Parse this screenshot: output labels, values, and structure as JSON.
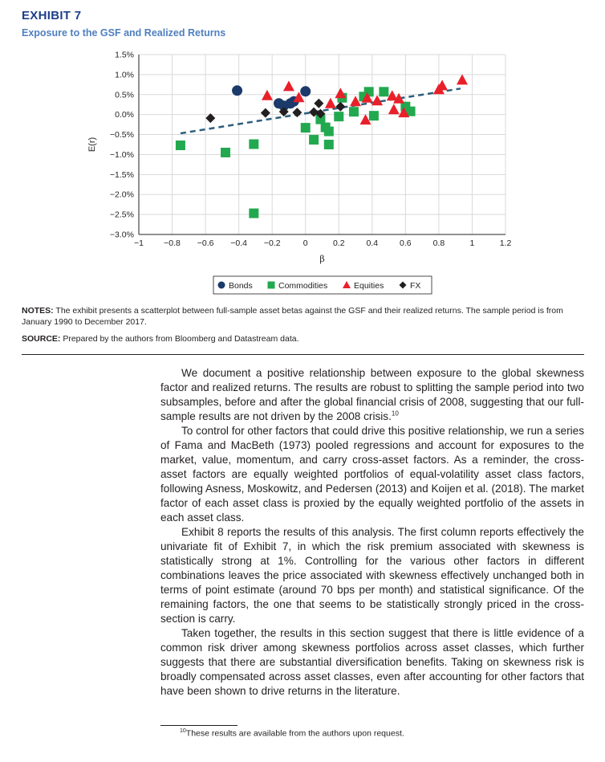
{
  "exhibit": {
    "label": "EXHIBIT 7",
    "title": "Exposure to the GSF and Realized Returns"
  },
  "chart_data": {
    "type": "scatter",
    "xlabel": "β",
    "ylabel": "E(r)",
    "xlim": [
      -1,
      1.2
    ],
    "ylim": [
      -3.0,
      1.5
    ],
    "x_ticks": [
      -1,
      -0.8,
      -0.6,
      -0.4,
      -0.2,
      0,
      0.2,
      0.4,
      0.6,
      0.8,
      1,
      1.2
    ],
    "x_tick_labels": [
      "−1",
      "−0.8",
      "−0.6",
      "−0.4",
      "−0.2",
      "0",
      "0.2",
      "0.4",
      "0.6",
      "0.8",
      "1",
      "1.2"
    ],
    "y_ticks": [
      1.5,
      1.0,
      0.5,
      0.0,
      -0.5,
      -1.0,
      -1.5,
      -2.0,
      -2.5,
      -3.0
    ],
    "y_tick_labels": [
      "1.5%",
      "1.0%",
      "0.5%",
      "0.0%",
      "−0.5%",
      "−1.0%",
      "−1.5%",
      "−2.0%",
      "−2.5%",
      "−3.0%"
    ],
    "grid": true,
    "legend_position": "bottom",
    "trend_line": {
      "x": [
        -0.75,
        0.93
      ],
      "y": [
        -0.47,
        0.65
      ],
      "color": "#2b5f7e"
    },
    "series": [
      {
        "name": "Bonds",
        "marker": "circle",
        "color": "#1b3a6b",
        "points": [
          [
            -0.41,
            0.6
          ],
          [
            -0.16,
            0.28
          ],
          [
            -0.13,
            0.22
          ],
          [
            -0.09,
            0.28
          ],
          [
            -0.07,
            0.33
          ],
          [
            0.0,
            0.58
          ]
        ]
      },
      {
        "name": "Commodities",
        "marker": "square",
        "color": "#22a94f",
        "points": [
          [
            -0.75,
            -0.77
          ],
          [
            -0.48,
            -0.95
          ],
          [
            -0.31,
            -0.74
          ],
          [
            -0.31,
            -2.47
          ],
          [
            0.0,
            -0.33
          ],
          [
            0.05,
            -0.63
          ],
          [
            0.09,
            -0.12
          ],
          [
            0.12,
            -0.32
          ],
          [
            0.14,
            -0.42
          ],
          [
            0.14,
            -0.75
          ],
          [
            0.2,
            -0.05
          ],
          [
            0.22,
            0.42
          ],
          [
            0.29,
            0.07
          ],
          [
            0.35,
            0.45
          ],
          [
            0.38,
            0.57
          ],
          [
            0.41,
            -0.03
          ],
          [
            0.47,
            0.57
          ],
          [
            0.6,
            0.2
          ],
          [
            0.63,
            0.08
          ]
        ]
      },
      {
        "name": "Equities",
        "marker": "triangle",
        "color": "#e8202a",
        "points": [
          [
            -0.23,
            0.48
          ],
          [
            -0.1,
            0.71
          ],
          [
            -0.04,
            0.43
          ],
          [
            0.15,
            0.28
          ],
          [
            0.21,
            0.53
          ],
          [
            0.3,
            0.33
          ],
          [
            0.36,
            -0.13
          ],
          [
            0.37,
            0.42
          ],
          [
            0.43,
            0.35
          ],
          [
            0.52,
            0.47
          ],
          [
            0.53,
            0.13
          ],
          [
            0.56,
            0.4
          ],
          [
            0.59,
            0.05
          ],
          [
            0.8,
            0.63
          ],
          [
            0.82,
            0.73
          ],
          [
            0.94,
            0.87
          ]
        ]
      },
      {
        "name": "FX",
        "marker": "diamond",
        "color": "#231f20",
        "points": [
          [
            -0.57,
            -0.09
          ],
          [
            -0.24,
            0.04
          ],
          [
            -0.13,
            0.07
          ],
          [
            -0.05,
            0.05
          ],
          [
            0.05,
            0.06
          ],
          [
            0.08,
            0.28
          ],
          [
            0.09,
            0.02
          ],
          [
            0.21,
            0.2
          ]
        ]
      }
    ]
  },
  "notes": {
    "label": "NOTES:",
    "text": " The exhibit presents a scatterplot between full-sample asset betas against the GSF and their realized returns. The sample period is from January 1990 to December 2017."
  },
  "source": {
    "label": "SOURCE:",
    "text": " Prepared by the authors from Bloomberg and Datastream data."
  },
  "body": {
    "p1": "We document a positive relationship between exposure to the global skewness factor and realized returns. The results are robust to splitting the sample period into two subsamples, before and after the global financial crisis of 2008, suggesting that our full-sample results are not driven by the 2008 crisis.",
    "p1_fn": "10",
    "p2": "To control for other factors that could drive this positive relationship, we run a series of Fama and MacBeth (1973) pooled regressions and account for exposures to the market, value, momentum, and carry cross-asset factors. As a reminder, the cross-asset factors are equally weighted portfolios of equal-volatility asset class factors, following Asness, Moskowitz, and Pedersen (2013) and Koijen et al. (2018). The market factor of each asset class is proxied by the equally weighted portfolio of the assets in each asset class.",
    "p3": "Exhibit 8 reports the results of this analysis. The first column reports effectively the univariate fit of Exhibit 7, in which the risk premium associated with skewness is statistically strong at 1%. Controlling for the various other factors in different combinations leaves the price associated with skewness effectively unchanged both in terms of point estimate (around 70 bps per month) and statistical significance. Of the remaining factors, the one that seems to be statistically strongly priced in the cross-section is carry.",
    "p4": "Taken together, the results in this section suggest that there is little evidence of a common risk driver among skewness portfolios across asset classes, which further suggests that there are substantial diversification benefits. Taking on skewness risk is broadly compensated across asset classes, even after accounting for other factors that have been shown to drive returns in the literature."
  },
  "footnote": {
    "number": "10",
    "text": "These results are available from the authors upon request."
  }
}
